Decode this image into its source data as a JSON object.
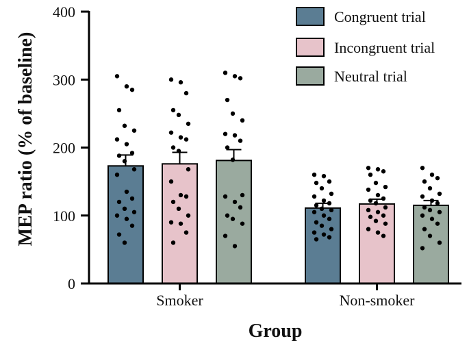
{
  "chart_data": {
    "type": "bar",
    "xlabel": "Group",
    "ylabel": "MEP ratio (% of baseline)",
    "ylim": [
      0,
      400
    ],
    "yticks": [
      0,
      100,
      200,
      300,
      400
    ],
    "grid": false,
    "legend_position": "top-right",
    "categories": [
      "Smoker",
      "Non-smoker"
    ],
    "series": [
      {
        "name": "Congruent trial",
        "color": "#5b7d93",
        "values": [
          173,
          111
        ],
        "sem_upper": [
          189,
          118
        ],
        "points": [
          [
            305,
            290,
            285,
            255,
            232,
            225,
            212,
            205,
            192,
            188,
            180,
            168,
            160,
            135,
            125,
            120,
            110,
            105,
            100,
            95,
            85,
            72,
            60
          ],
          [
            160,
            158,
            150,
            148,
            140,
            132,
            128,
            122,
            118,
            115,
            110,
            108,
            105,
            100,
            95,
            90,
            85,
            80,
            75,
            72,
            68,
            65
          ]
        ]
      },
      {
        "name": "Incongruent trial",
        "color": "#e7c3ca",
        "values": [
          176,
          117
        ],
        "sem_upper": [
          193,
          124
        ],
        "points": [
          [
            300,
            296,
            280,
            255,
            248,
            235,
            222,
            215,
            212,
            200,
            195,
            168,
            150,
            130,
            128,
            120,
            110,
            100,
            90,
            88,
            75,
            60
          ],
          [
            170,
            168,
            165,
            160,
            148,
            142,
            138,
            130,
            125,
            122,
            118,
            112,
            108,
            105,
            100,
            98,
            92,
            88,
            80,
            75,
            70
          ]
        ]
      },
      {
        "name": "Neutral trial",
        "color": "#9aaa9f",
        "values": [
          181,
          115
        ],
        "sem_upper": [
          197,
          122
        ],
        "points": [
          [
            310,
            305,
            302,
            270,
            250,
            240,
            220,
            218,
            210,
            200,
            182,
            130,
            128,
            120,
            112,
            100,
            95,
            88,
            70,
            55
          ],
          [
            170,
            160,
            155,
            150,
            140,
            132,
            128,
            122,
            118,
            112,
            108,
            105,
            100,
            95,
            88,
            80,
            70,
            60,
            52
          ]
        ]
      }
    ]
  }
}
